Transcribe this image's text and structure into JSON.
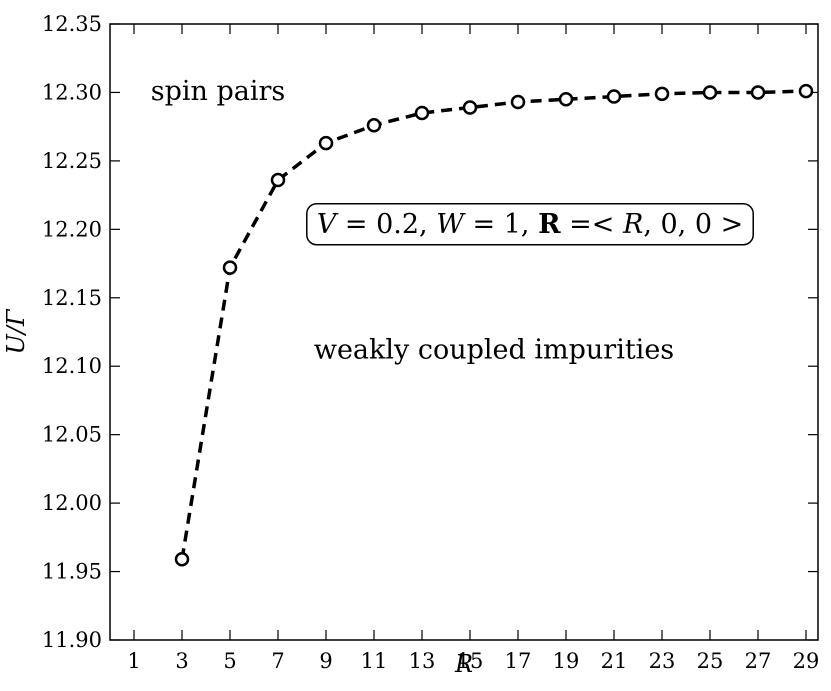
{
  "chart_data": {
    "type": "line",
    "xlabel": "R",
    "ylabel": "U/Γ",
    "xlim": [
      0,
      29.5
    ],
    "ylim": [
      11.9,
      12.35
    ],
    "xticks": [
      1,
      3,
      5,
      7,
      9,
      11,
      13,
      15,
      17,
      19,
      21,
      23,
      25,
      27,
      29
    ],
    "yticks": [
      11.9,
      11.95,
      12.0,
      12.05,
      12.1,
      12.15,
      12.2,
      12.25,
      12.3,
      12.35
    ],
    "ytick_labels": [
      "11.90",
      "11.95",
      "12.00",
      "12.05",
      "12.10",
      "12.15",
      "12.20",
      "12.25",
      "12.30",
      "12.35"
    ],
    "xtick_labels": [
      "1",
      "3",
      "5",
      "7",
      "9",
      "11",
      "13",
      "15",
      "17",
      "19",
      "21",
      "23",
      "25",
      "27",
      "29"
    ],
    "series": [
      {
        "x": [
          3,
          5,
          7,
          9,
          11,
          13,
          15,
          17,
          19,
          21,
          23,
          25,
          27,
          29
        ],
        "y": [
          11.959,
          12.172,
          12.236,
          12.263,
          12.276,
          12.285,
          12.289,
          12.293,
          12.295,
          12.297,
          12.299,
          12.3,
          12.3,
          12.301
        ],
        "line_style": "dashed",
        "marker": "open-circle",
        "color": "#000000"
      }
    ],
    "annotations": [
      {
        "text": "spin pairs",
        "x": 4.5,
        "y": 12.3
      },
      {
        "text": "weakly coupled impurities",
        "x": 16,
        "y": 12.111
      }
    ],
    "infobox": {
      "text": "V = 0.2, W = 1, R =< R, 0, 0 >",
      "parts": [
        "V",
        " = 0.2, ",
        "W",
        " = 1, ",
        "R",
        " =< ",
        "R",
        ", 0, 0 >"
      ],
      "x": 17.5,
      "y": 12.203
    },
    "grid": false,
    "legend": "none"
  }
}
